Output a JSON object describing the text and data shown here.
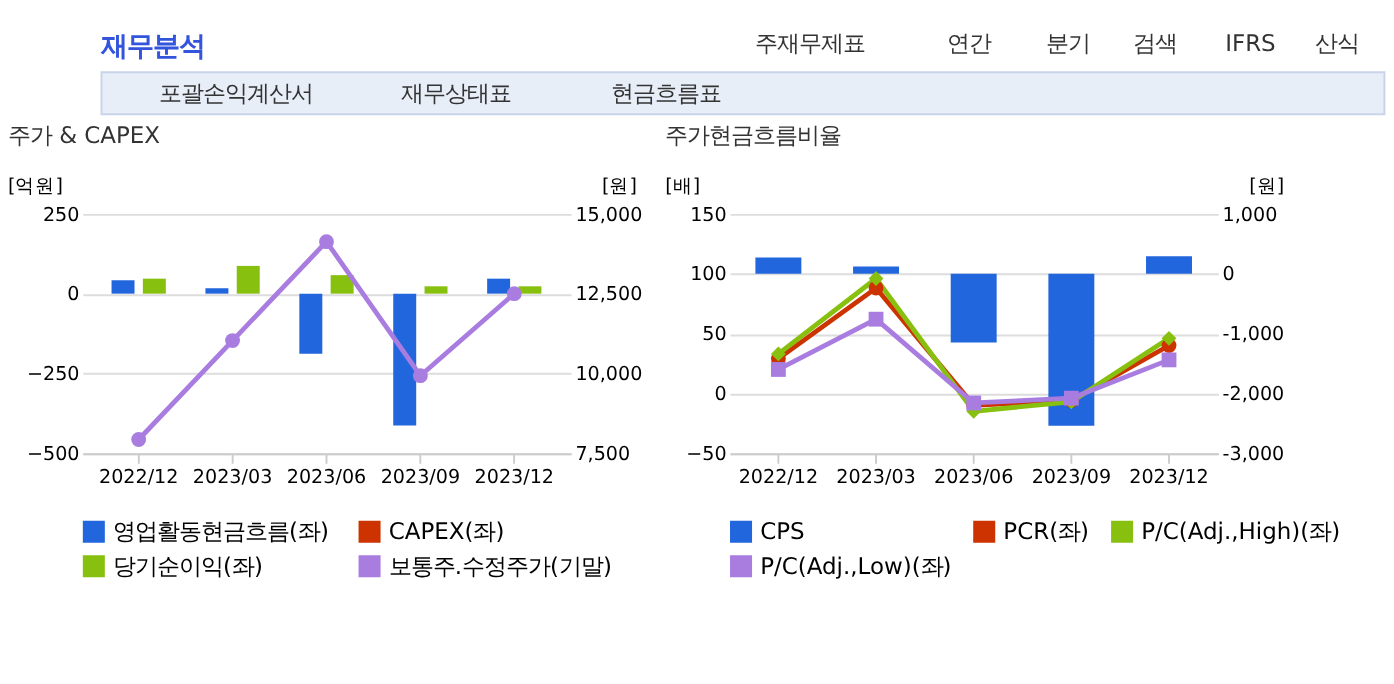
{
  "chart_data": [
    {
      "type": "other",
      "title": "재무분석",
      "annotations": [
        "주재무제표",
        "연간",
        "분기",
        "검색",
        "IFRS",
        "산식",
        "포괄손익계산서",
        "재무상태표",
        "현금흐름표"
      ]
    },
    {
      "type": "bar",
      "title": "주가 & CAPEX",
      "ylabel": "[억원]",
      "y2label": "[원]",
      "categories": [
        "2022/12",
        "2023/03",
        "2023/06",
        "2023/09",
        "2023/12"
      ],
      "ylim": [
        -500,
        250
      ],
      "yticks": [
        -500,
        -250,
        0,
        250
      ],
      "y2lim": [
        7500,
        15000
      ],
      "y2ticks": [
        {
          "value": 7500,
          "label": "7,500"
        },
        {
          "value": 10000,
          "label": "10,000"
        },
        {
          "value": 12500,
          "label": "12,500"
        },
        {
          "value": 15000,
          "label": "15,000"
        }
      ],
      "grid": "y",
      "legend": "bottom",
      "series": [
        {
          "name": "영업활동현금흐름(좌)",
          "type": "bar",
          "color": "#2266dd",
          "values": [
            42,
            17,
            -188,
            -413,
            47
          ]
        },
        {
          "name": "CAPEX(좌)",
          "type": "bar",
          "color": "#cc3300",
          "values": [
            null,
            null,
            null,
            null,
            null
          ]
        },
        {
          "name": "당기순이익(좌)",
          "type": "bar",
          "color": "#88c010",
          "values": [
            47,
            87,
            58,
            23,
            23
          ]
        },
        {
          "name": "보통주.수정주가(기말)",
          "type": "line",
          "axis": "y2",
          "marker": "circle",
          "color": "#a97de0",
          "values": [
            7930,
            11030,
            14130,
            9930,
            12500
          ]
        }
      ]
    },
    {
      "type": "bar",
      "title": "주가현금흐름비율",
      "ylabel": "[배]",
      "y2label": "[원]",
      "categories": [
        "2022/12",
        "2023/03",
        "2023/06",
        "2023/09",
        "2023/12"
      ],
      "ylim": [
        -50,
        150
      ],
      "yticks": [
        -50,
        0,
        50,
        100,
        150
      ],
      "y2lim": [
        -3000,
        1000
      ],
      "y2ticks": [
        {
          "value": -3000,
          "label": "-3,000"
        },
        {
          "value": -2000,
          "label": "-2,000"
        },
        {
          "value": -1000,
          "label": "-1,000"
        },
        0,
        {
          "value": 1000,
          "label": "1,000"
        }
      ],
      "grid": "y",
      "legend": "bottom",
      "series": [
        {
          "name": "CPS",
          "type": "bar",
          "axis": "y2",
          "color": "#2266dd",
          "values": [
            270,
            120,
            -1150,
            -2540,
            290
          ]
        },
        {
          "name": "PCR(좌)",
          "type": "line",
          "marker": "circle",
          "color": "#cc3300",
          "values": [
            29,
            88,
            -10,
            -6,
            40
          ]
        },
        {
          "name": "P/C(Adj.,High)(좌)",
          "type": "line",
          "marker": "diamond",
          "color": "#88c010",
          "values": [
            33,
            96,
            -15,
            -7,
            46
          ]
        },
        {
          "name": "P/C(Adj.,Low)(좌)",
          "type": "line",
          "marker": "square",
          "color": "#a97de0",
          "values": [
            20,
            62,
            -8,
            -4,
            28
          ]
        }
      ]
    }
  ]
}
